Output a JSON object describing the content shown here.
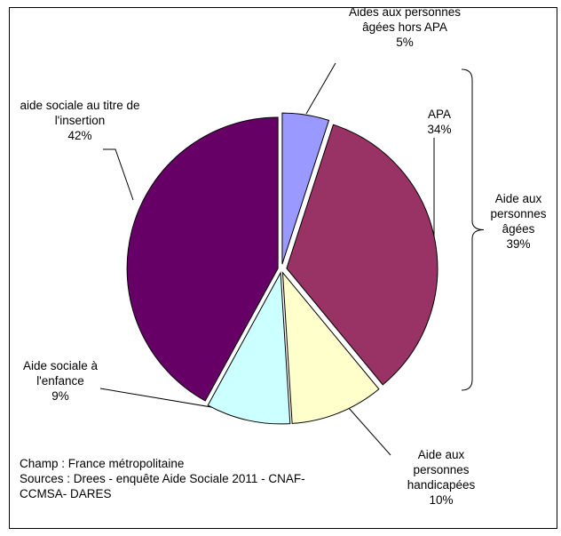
{
  "chart_data": {
    "type": "pie",
    "categories": [
      "Aides aux personnes âgées hors APA",
      "APA",
      "Aide aux personnes handicapées",
      "Aide sociale à l'enfance",
      "aide sociale au titre de l'insertion"
    ],
    "values": [
      5,
      34,
      10,
      9,
      42
    ],
    "value_labels": [
      "5%",
      "34%",
      "10%",
      "9%",
      "42%"
    ],
    "colors": [
      "#9999ff",
      "#993366",
      "#ffffcc",
      "#ccffff",
      "#660066"
    ],
    "annotations": [
      {
        "text": "Aide aux personnes âgées",
        "value": 39,
        "value_label": "39%"
      }
    ],
    "notes": [
      "Champ : France métropolitaine",
      "Sources : Drees - enquête Aide Sociale 2011 - CNAF-CCMSA- DARES"
    ]
  }
}
